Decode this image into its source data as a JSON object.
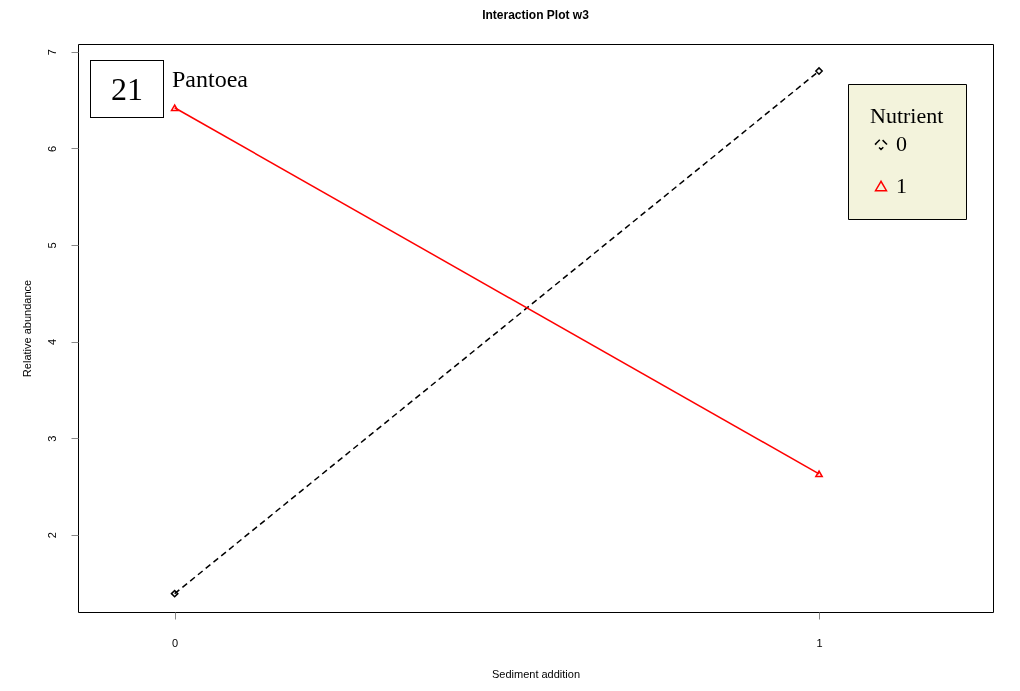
{
  "chart_data": {
    "type": "line",
    "title": "Interaction Plot w3",
    "xlabel": "Sediment addition",
    "ylabel": "Relative abundance",
    "legend_title": "Nutrient",
    "x": [
      0,
      1
    ],
    "xlim": [
      -0.15,
      1.27
    ],
    "xticks": [
      0,
      1
    ],
    "ylim": [
      1.2,
      7.08
    ],
    "yticks": [
      2,
      3,
      4,
      5,
      6,
      7
    ],
    "series": [
      {
        "name": "0",
        "color": "#000000",
        "values": [
          1.39,
          6.8
        ],
        "line_style": "dashed",
        "marker": "diamond"
      },
      {
        "name": "1",
        "color": "#ff0000",
        "values": [
          6.42,
          2.63
        ],
        "line_style": "solid",
        "marker": "triangle"
      }
    ],
    "annotations": [
      "21",
      "Pantoea"
    ],
    "grid": false,
    "legend": "top right"
  }
}
